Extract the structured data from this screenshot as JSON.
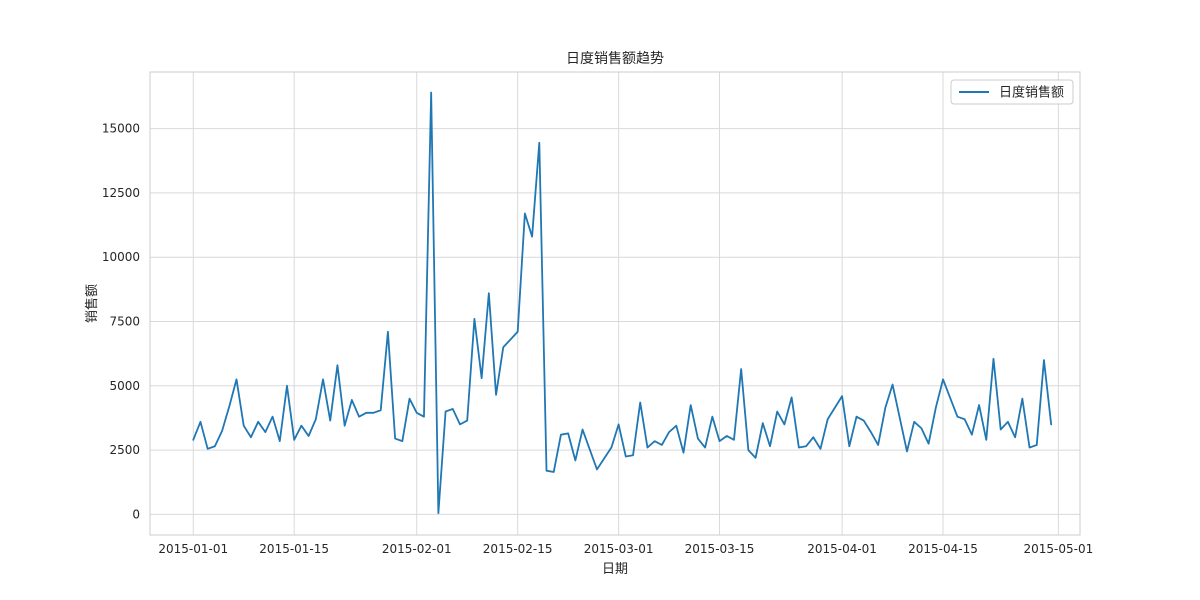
{
  "chart_data": {
    "type": "line",
    "title": "日度销售额趋势",
    "xlabel": "日期",
    "ylabel": "销售额",
    "xlim": [
      "2014-12-26",
      "2015-05-04"
    ],
    "ylim": [
      -800,
      17200
    ],
    "x_ticks": [
      "2015-01-01",
      "2015-01-15",
      "2015-02-01",
      "2015-02-15",
      "2015-03-01",
      "2015-03-15",
      "2015-04-01",
      "2015-04-15",
      "2015-05-01"
    ],
    "y_ticks": [
      0,
      2500,
      5000,
      7500,
      10000,
      12500,
      15000
    ],
    "grid": true,
    "legend_position": "top-right",
    "line_color": "#1f77b4",
    "series": [
      {
        "name": "日度销售额",
        "points": [
          [
            "2015-01-01",
            2900
          ],
          [
            "2015-01-02",
            3600
          ],
          [
            "2015-01-03",
            2550
          ],
          [
            "2015-01-04",
            2650
          ],
          [
            "2015-01-05",
            3250
          ],
          [
            "2015-01-06",
            4200
          ],
          [
            "2015-01-07",
            5250
          ],
          [
            "2015-01-08",
            3450
          ],
          [
            "2015-01-09",
            3000
          ],
          [
            "2015-01-10",
            3600
          ],
          [
            "2015-01-11",
            3200
          ],
          [
            "2015-01-12",
            3800
          ],
          [
            "2015-01-13",
            2850
          ],
          [
            "2015-01-14",
            5000
          ],
          [
            "2015-01-15",
            2900
          ],
          [
            "2015-01-16",
            3450
          ],
          [
            "2015-01-17",
            3050
          ],
          [
            "2015-01-18",
            3700
          ],
          [
            "2015-01-19",
            5250
          ],
          [
            "2015-01-20",
            3650
          ],
          [
            "2015-01-21",
            5800
          ],
          [
            "2015-01-22",
            3450
          ],
          [
            "2015-01-23",
            4450
          ],
          [
            "2015-01-24",
            3800
          ],
          [
            "2015-01-25",
            3950
          ],
          [
            "2015-01-26",
            3950
          ],
          [
            "2015-01-27",
            4050
          ],
          [
            "2015-01-28",
            7100
          ],
          [
            "2015-01-29",
            2950
          ],
          [
            "2015-01-30",
            2850
          ],
          [
            "2015-01-31",
            4500
          ],
          [
            "2015-02-01",
            3950
          ],
          [
            "2015-02-02",
            3800
          ],
          [
            "2015-02-03",
            16400
          ],
          [
            "2015-02-04",
            50
          ],
          [
            "2015-02-05",
            4000
          ],
          [
            "2015-02-06",
            4100
          ],
          [
            "2015-02-07",
            3500
          ],
          [
            "2015-02-08",
            3650
          ],
          [
            "2015-02-09",
            7600
          ],
          [
            "2015-02-10",
            5300
          ],
          [
            "2015-02-11",
            8600
          ],
          [
            "2015-02-12",
            4650
          ],
          [
            "2015-02-13",
            6500
          ],
          [
            "2015-02-15",
            7100
          ],
          [
            "2015-02-16",
            11700
          ],
          [
            "2015-02-17",
            10800
          ],
          [
            "2015-02-18",
            14450
          ],
          [
            "2015-02-19",
            1700
          ],
          [
            "2015-02-20",
            1650
          ],
          [
            "2015-02-21",
            3100
          ],
          [
            "2015-02-22",
            3150
          ],
          [
            "2015-02-23",
            2100
          ],
          [
            "2015-02-24",
            3300
          ],
          [
            "2015-02-26",
            1750
          ],
          [
            "2015-02-28",
            2600
          ],
          [
            "2015-03-01",
            3500
          ],
          [
            "2015-03-02",
            2250
          ],
          [
            "2015-03-03",
            2300
          ],
          [
            "2015-03-04",
            4350
          ],
          [
            "2015-03-05",
            2600
          ],
          [
            "2015-03-06",
            2850
          ],
          [
            "2015-03-07",
            2700
          ],
          [
            "2015-03-08",
            3200
          ],
          [
            "2015-03-09",
            3450
          ],
          [
            "2015-03-10",
            2400
          ],
          [
            "2015-03-11",
            4250
          ],
          [
            "2015-03-12",
            2950
          ],
          [
            "2015-03-13",
            2600
          ],
          [
            "2015-03-14",
            3800
          ],
          [
            "2015-03-15",
            2850
          ],
          [
            "2015-03-16",
            3050
          ],
          [
            "2015-03-17",
            2900
          ],
          [
            "2015-03-18",
            5650
          ],
          [
            "2015-03-19",
            2500
          ],
          [
            "2015-03-20",
            2200
          ],
          [
            "2015-03-21",
            3550
          ],
          [
            "2015-03-22",
            2650
          ],
          [
            "2015-03-23",
            4000
          ],
          [
            "2015-03-24",
            3500
          ],
          [
            "2015-03-25",
            4550
          ],
          [
            "2015-03-26",
            2600
          ],
          [
            "2015-03-27",
            2650
          ],
          [
            "2015-03-28",
            3000
          ],
          [
            "2015-03-29",
            2550
          ],
          [
            "2015-03-30",
            3700
          ],
          [
            "2015-04-01",
            4600
          ],
          [
            "2015-04-02",
            2650
          ],
          [
            "2015-04-03",
            3800
          ],
          [
            "2015-04-04",
            3650
          ],
          [
            "2015-04-05",
            3200
          ],
          [
            "2015-04-06",
            2700
          ],
          [
            "2015-04-07",
            4150
          ],
          [
            "2015-04-08",
            5050
          ],
          [
            "2015-04-09",
            3750
          ],
          [
            "2015-04-10",
            2450
          ],
          [
            "2015-04-11",
            3600
          ],
          [
            "2015-04-12",
            3350
          ],
          [
            "2015-04-13",
            2750
          ],
          [
            "2015-04-14",
            4150
          ],
          [
            "2015-04-15",
            5250
          ],
          [
            "2015-04-17",
            3800
          ],
          [
            "2015-04-18",
            3700
          ],
          [
            "2015-04-19",
            3100
          ],
          [
            "2015-04-20",
            4250
          ],
          [
            "2015-04-21",
            2900
          ],
          [
            "2015-04-22",
            6050
          ],
          [
            "2015-04-23",
            3300
          ],
          [
            "2015-04-24",
            3600
          ],
          [
            "2015-04-25",
            3000
          ],
          [
            "2015-04-26",
            4500
          ],
          [
            "2015-04-27",
            2600
          ],
          [
            "2015-04-28",
            2700
          ],
          [
            "2015-04-29",
            6000
          ],
          [
            "2015-04-30",
            3500
          ]
        ]
      }
    ]
  }
}
